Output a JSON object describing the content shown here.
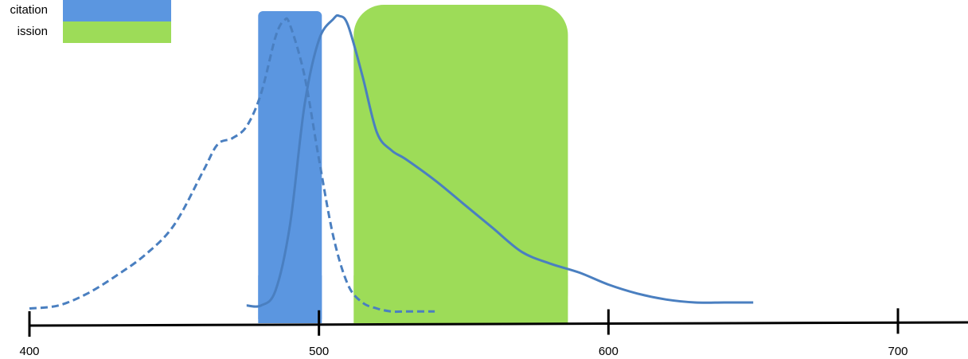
{
  "chart_data": {
    "type": "line",
    "title": "",
    "xlabel": "",
    "ylabel": "",
    "xlim": [
      400,
      700
    ],
    "x_ticks": [
      "400",
      "500",
      "600",
      "700"
    ],
    "ylim": [
      0,
      1
    ],
    "legend": [
      {
        "label": "Excitation",
        "visible_text": "citation",
        "color": "#5b96e0"
      },
      {
        "label": "Emission",
        "visible_text": "ission",
        "color": "#9ddc58"
      }
    ],
    "bands": [
      {
        "name": "Excitation",
        "x": [
          479,
          501
        ],
        "color": "#5b96e0"
      },
      {
        "name": "Emission",
        "x": [
          512,
          586
        ],
        "color": "#9ddc58"
      }
    ],
    "series": [
      {
        "style": "dashed",
        "color": "#4a7fc0",
        "x": [
          400,
          410,
          420,
          430,
          440,
          450,
          460,
          465,
          470,
          475,
          480,
          485,
          488,
          490,
          495,
          500,
          505,
          510,
          515,
          520,
          525,
          530,
          535,
          540
        ],
        "y": [
          0.02,
          0.03,
          0.07,
          0.13,
          0.2,
          0.3,
          0.48,
          0.57,
          0.59,
          0.63,
          0.74,
          0.93,
          0.985,
          0.97,
          0.8,
          0.52,
          0.26,
          0.1,
          0.04,
          0.02,
          0.01,
          0.01,
          0.01,
          0.01
        ]
      },
      {
        "style": "solid",
        "color": "#4a7fc0",
        "x": [
          475,
          480,
          485,
          490,
          495,
          500,
          505,
          507,
          510,
          515,
          520,
          525,
          530,
          540,
          550,
          560,
          570,
          580,
          590,
          600,
          610,
          620,
          630,
          640,
          650
        ],
        "y": [
          0.03,
          0.03,
          0.08,
          0.3,
          0.7,
          0.92,
          0.99,
          1.0,
          0.97,
          0.8,
          0.61,
          0.55,
          0.52,
          0.45,
          0.37,
          0.29,
          0.21,
          0.17,
          0.14,
          0.1,
          0.07,
          0.05,
          0.04,
          0.04,
          0.04
        ]
      }
    ]
  }
}
